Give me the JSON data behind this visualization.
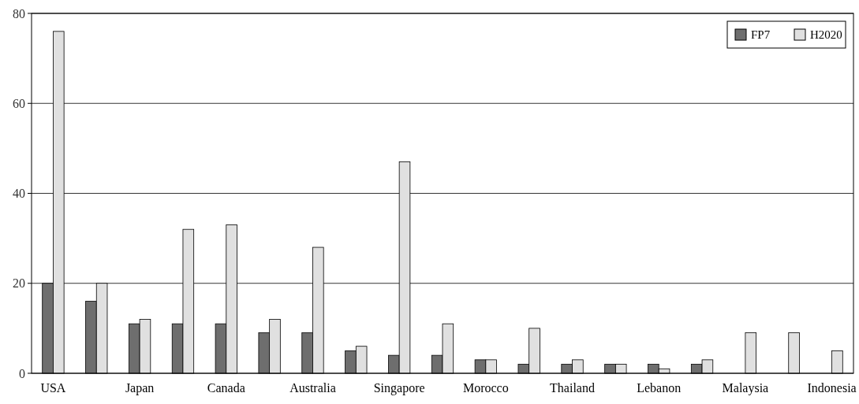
{
  "chart_data": {
    "type": "bar",
    "categories": [
      "USA",
      null,
      "Japan",
      null,
      "Canada",
      null,
      "Australia",
      null,
      "Singapore",
      null,
      "Morocco",
      null,
      "Thailand",
      null,
      "Lebanon",
      null,
      "Malaysia",
      null,
      "Indonesia"
    ],
    "series": [
      {
        "name": "FP7",
        "color": "#6e6e6e",
        "values": [
          20,
          16,
          11,
          11,
          11,
          9,
          9,
          5,
          4,
          4,
          3,
          2,
          2,
          2,
          2,
          2,
          0,
          0,
          0
        ]
      },
      {
        "name": "H2020",
        "color": "#e0e0e0",
        "values": [
          76,
          20,
          12,
          32,
          33,
          12,
          28,
          6,
          47,
          11,
          3,
          10,
          3,
          2,
          1,
          3,
          9,
          9,
          5
        ]
      }
    ],
    "ylim": [
      0,
      80
    ],
    "yticks": [
      0,
      20,
      40,
      60,
      80
    ],
    "grid": "y",
    "legend": "top right"
  }
}
